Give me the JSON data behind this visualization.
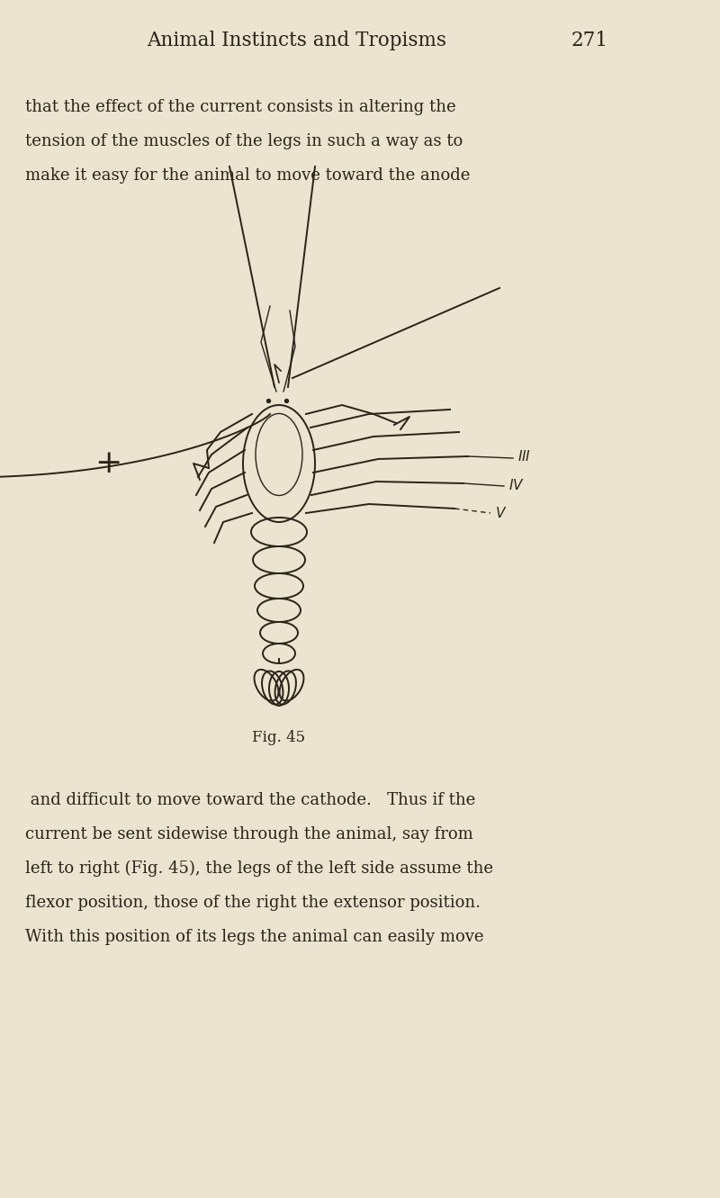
{
  "bg_color": "#EAE4D0",
  "text_color": "#2a2318",
  "page_width": 8.0,
  "page_height": 13.31,
  "header_text": "Animal Instincts and Tropisms",
  "header_page": "271",
  "para1_lines": [
    "that the effect of the current consists in altering the",
    "tension of the muscles of the legs in such a way as to",
    "make it easy for the animal to move toward the anode"
  ],
  "fig_caption": "Fig. 45",
  "para2_lines": [
    " and difficult to move toward the cathode.   Thus if the",
    "current be sent sidewise through the animal, say from",
    "left to right (Fig. 45), the legs of the left side assume the",
    "flexor position, those of the right the extensor position.",
    "With this position of its legs the animal can easily move"
  ]
}
